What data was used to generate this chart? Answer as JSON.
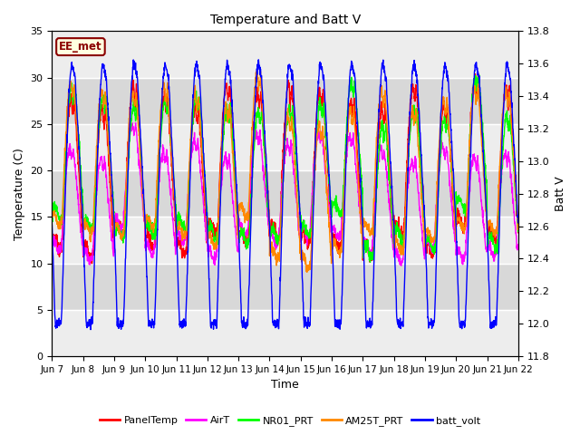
{
  "title": "Temperature and Batt V",
  "xlabel": "Time",
  "ylabel_left": "Temperature (C)",
  "ylabel_right": "Batt V",
  "annotation": "EE_met",
  "ylim_left": [
    0,
    35
  ],
  "ylim_right": [
    11.8,
    13.8
  ],
  "xtick_labels": [
    "Jun 7",
    "Jun 8",
    "Jun 9",
    "Jun 10",
    "Jun 11",
    "Jun 12",
    "Jun 13",
    "Jun 14",
    "Jun 15",
    "Jun 16",
    "Jun 17",
    "Jun 18",
    "Jun 19",
    "Jun 20",
    "Jun 21",
    "Jun 22"
  ],
  "yticks_left": [
    0,
    5,
    10,
    15,
    20,
    25,
    30,
    35
  ],
  "yticks_right": [
    11.8,
    12.0,
    12.2,
    12.4,
    12.6,
    12.8,
    13.0,
    13.2,
    13.4,
    13.6,
    13.8
  ],
  "series_colors": {
    "PanelTemp": "#ff0000",
    "AirT": "#ff00ff",
    "NR01_PRT": "#00ff00",
    "AM25T_PRT": "#ff8800",
    "batt_volt": "#0000ff"
  },
  "legend_entries": [
    "PanelTemp",
    "AirT",
    "NR01_PRT",
    "AM25T_PRT",
    "batt_volt"
  ],
  "background_color": "#ffffff",
  "plot_bg_light": "#d8d8d8",
  "plot_bg_dark": "#ececec",
  "grid_color": "#ffffff",
  "n_days": 15,
  "pts_per_day": 144
}
